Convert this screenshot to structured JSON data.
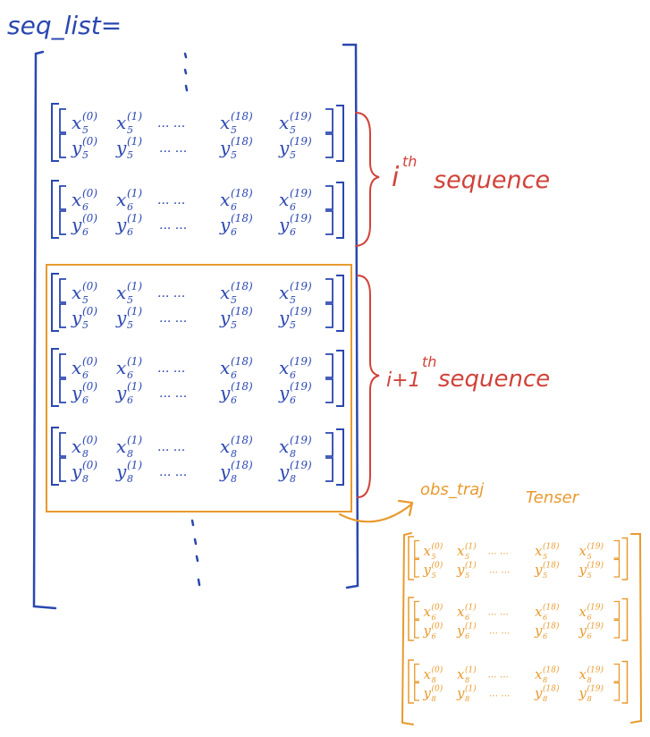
{
  "title": "seq_list=",
  "annotations": {
    "seq_i": "i",
    "seq_i_sup": "th",
    "seq_i_word": "sequence",
    "seq_i1": "i+1",
    "seq_i1_sup": "th",
    "seq_i1_word": "sequence",
    "obs_traj": "obs_traj",
    "tensor": "Tenser"
  },
  "ellipsis": "...",
  "matrix_rows": [
    {
      "var": "x",
      "sub": "5"
    },
    {
      "var": "y",
      "sub": "5"
    },
    {
      "var": "x",
      "sub": "6"
    },
    {
      "var": "y",
      "sub": "6"
    },
    {
      "var": "x",
      "sub": "8"
    },
    {
      "var": "y",
      "sub": "8"
    }
  ],
  "columns": [
    "(0)",
    "(1)",
    "(18)",
    "(19)"
  ],
  "colors": {
    "blue": "#2b47b0",
    "red": "#d0433a",
    "orange": "#e89a2e"
  }
}
